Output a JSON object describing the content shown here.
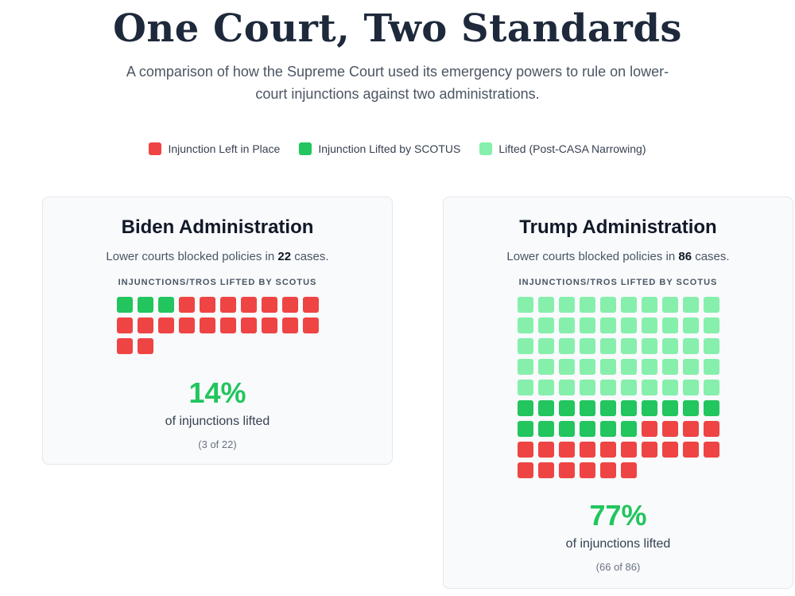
{
  "header": {
    "title": "One Court, Two Standards",
    "subtitle": "A comparison of how the Supreme Court used its emergency powers to rule on lower-court injunctions against two administrations."
  },
  "legend": [
    {
      "label": "Injunction Left in Place",
      "color": "#ef4444"
    },
    {
      "label": "Injunction Lifted by SCOTUS",
      "color": "#22c55e"
    },
    {
      "label": "Lifted (Post-CASA Narrowing)",
      "color": "#86efac"
    }
  ],
  "chart_data": [
    {
      "type": "waffle",
      "title": "Biden Administration",
      "description_prefix": "Lower courts blocked policies in",
      "total": 22,
      "description_suffix": "cases.",
      "grid_label": "INJUNCTIONS/TROS LIFTED BY SCOTUS",
      "counts": {
        "lifted_post_casa": 0,
        "lifted": 3,
        "left_in_place": 19
      },
      "percent_text": "14%",
      "percent_label": "of injunctions lifted",
      "fraction_text": "(3 of 22)"
    },
    {
      "type": "waffle",
      "title": "Trump Administration",
      "description_prefix": "Lower courts blocked policies in",
      "total": 86,
      "description_suffix": "cases.",
      "grid_label": "INJUNCTIONS/TROS LIFTED BY SCOTUS",
      "counts": {
        "lifted_post_casa": 50,
        "lifted": 16,
        "left_in_place": 20
      },
      "percent_text": "77%",
      "percent_label": "of injunctions lifted",
      "fraction_text": "(66 of 86)"
    }
  ]
}
